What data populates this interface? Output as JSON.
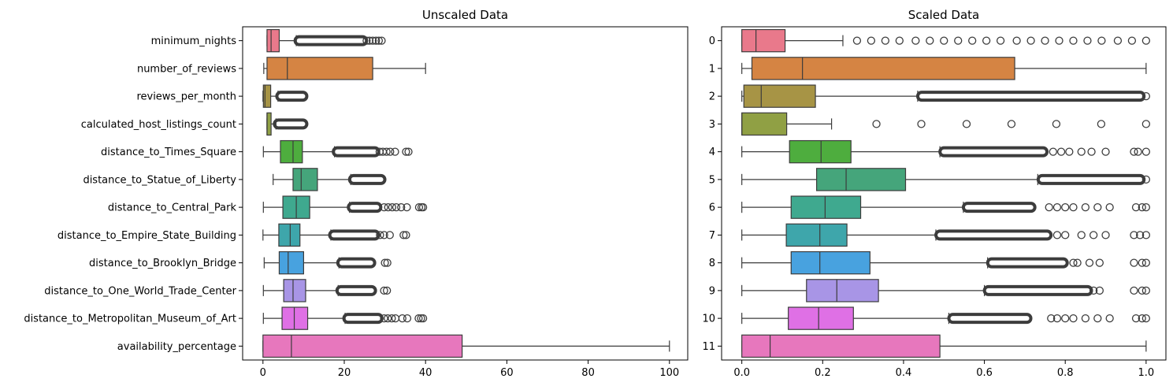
{
  "colors": {
    "box_palette": [
      "#e9798b",
      "#d58443",
      "#a79445",
      "#90a044",
      "#4ead3e",
      "#45a57b",
      "#3fa98f",
      "#3ea6ab",
      "#48a2df",
      "#a895e6",
      "#df70e5",
      "#e777bd"
    ],
    "box_edge": "#3c3c3c",
    "flier": "#3c3c3c",
    "frame": "#000000"
  },
  "chart_data": [
    {
      "type": "boxplot",
      "orientation": "horizontal",
      "title": "Unscaled Data",
      "xlim": [
        -5,
        104.5
      ],
      "xticks": [
        0,
        20,
        40,
        60,
        80,
        100
      ],
      "categories": [
        "minimum_nights",
        "number_of_reviews",
        "reviews_per_month",
        "calculated_host_listings_count",
        "distance_to_Times_Square",
        "distance_to_Statue_of_Liberty",
        "distance_to_Central_Park",
        "distance_to_Empire_State_Building",
        "distance_to_Brooklyn_Bridge",
        "distance_to_One_World_Trade_Center",
        "distance_to_Metropolitan_Museum_of_Art",
        "availability_percentage"
      ],
      "boxes": [
        {
          "wlo": 1,
          "q1": 1,
          "med": 2,
          "q3": 4,
          "whi": 8.2,
          "fliers": {
            "dense": [
              8.4,
              25
            ],
            "sparse": [
              25.5,
              26.2,
              27,
              27.8,
              28.5,
              29.2
            ]
          }
        },
        {
          "wlo": 0.2,
          "q1": 1,
          "med": 6,
          "q3": 27,
          "whi": 40,
          "fliers": {
            "dense": null,
            "sparse": []
          }
        },
        {
          "wlo": 0,
          "q1": 0.1,
          "med": 0.5,
          "q3": 1.9,
          "whi": 3.7,
          "fliers": {
            "dense": [
              3.9,
              10.3
            ],
            "sparse": []
          }
        },
        {
          "wlo": 1,
          "q1": 1,
          "med": 1,
          "q3": 2,
          "whi": 3.2,
          "fliers": {
            "dense": [
              3.3,
              10.3
            ],
            "sparse": []
          }
        },
        {
          "wlo": 0.1,
          "q1": 4.3,
          "med": 7.4,
          "q3": 9.7,
          "whi": 17.6,
          "fliers": {
            "dense": [
              17.8,
              28
            ],
            "sparse": [
              28.7,
              29.5,
              30.4,
              31.3,
              32.5,
              35.2,
              35.8
            ]
          }
        },
        {
          "wlo": 2.5,
          "q1": 7.4,
          "med": 9.4,
          "q3": 13.4,
          "whi": 21.6,
          "fliers": {
            "dense": [
              21.8,
              29.5
            ],
            "sparse": []
          }
        },
        {
          "wlo": 0.1,
          "q1": 4.9,
          "med": 8.2,
          "q3": 11.5,
          "whi": 21.3,
          "fliers": {
            "dense": [
              21.5,
              28.5
            ],
            "sparse": [
              29.8,
              30.8,
              31.8,
              32.8,
              34,
              35.4,
              38.4,
              39,
              39.4
            ]
          }
        },
        {
          "wlo": 0,
          "q1": 3.9,
          "med": 6.7,
          "q3": 9.1,
          "whi": 16.7,
          "fliers": {
            "dense": [
              16.9,
              28
            ],
            "sparse": [
              28.8,
              29.8,
              31.2,
              34.6,
              35.2
            ]
          }
        },
        {
          "wlo": 0.3,
          "q1": 4,
          "med": 6.2,
          "q3": 10,
          "whi": 18.7,
          "fliers": {
            "dense": [
              18.9,
              27
            ],
            "sparse": [
              30,
              30.6
            ]
          }
        },
        {
          "wlo": 0.1,
          "q1": 5.1,
          "med": 7.4,
          "q3": 10.5,
          "whi": 18.5,
          "fliers": {
            "dense": [
              18.7,
              27.2
            ],
            "sparse": [
              29.8,
              30.5
            ]
          }
        },
        {
          "wlo": 0.1,
          "q1": 4.7,
          "med": 7.7,
          "q3": 11,
          "whi": 20.2,
          "fliers": {
            "dense": [
              20.4,
              28.8
            ],
            "sparse": [
              29.8,
              30.7,
              31.7,
              32.6,
              34.3,
              35.5,
              38.3,
              38.9,
              39.4
            ]
          }
        },
        {
          "wlo": 0,
          "q1": 0,
          "med": 7,
          "q3": 49,
          "whi": 100,
          "fliers": {
            "dense": null,
            "sparse": []
          }
        }
      ]
    },
    {
      "type": "boxplot",
      "orientation": "horizontal",
      "title": "Scaled Data",
      "xlim": [
        -0.05,
        1.049
      ],
      "xticks": [
        0.0,
        0.2,
        0.4,
        0.6,
        0.8,
        1.0
      ],
      "categories": [
        "0",
        "1",
        "2",
        "3",
        "4",
        "5",
        "6",
        "7",
        "8",
        "9",
        "10",
        "11"
      ],
      "boxes": [
        {
          "wlo": 0,
          "q1": 0,
          "med": 0.035,
          "q3": 0.107,
          "whi": 0.25,
          "fliers": {
            "dense": null,
            "sparse": [
              0.285,
              0.32,
              0.355,
              0.39,
              0.43,
              0.465,
              0.5,
              0.535,
              0.57,
              0.605,
              0.64,
              0.68,
              0.715,
              0.75,
              0.785,
              0.82,
              0.855,
              0.89,
              0.93,
              0.965,
              1.0
            ]
          }
        },
        {
          "wlo": 0,
          "q1": 0.025,
          "med": 0.15,
          "q3": 0.675,
          "whi": 1.0,
          "fliers": {
            "dense": null,
            "sparse": []
          }
        },
        {
          "wlo": 0,
          "q1": 0.005,
          "med": 0.048,
          "q3": 0.182,
          "whi": 0.435,
          "fliers": {
            "dense": [
              0.44,
              0.99
            ],
            "sparse": [
              1.0
            ]
          }
        },
        {
          "wlo": 0,
          "q1": 0,
          "med": 0,
          "q3": 0.111,
          "whi": 0.222,
          "fliers": {
            "dense": null,
            "sparse": [
              0.333,
              0.444,
              0.556,
              0.667,
              0.778,
              0.889,
              1.0
            ]
          }
        },
        {
          "wlo": 0,
          "q1": 0.118,
          "med": 0.196,
          "q3": 0.27,
          "whi": 0.49,
          "fliers": {
            "dense": [
              0.495,
              0.75
            ],
            "sparse": [
              0.77,
              0.79,
              0.81,
              0.84,
              0.865,
              0.9,
              0.97,
              0.98,
              1.0
            ]
          }
        },
        {
          "wlo": 0,
          "q1": 0.185,
          "med": 0.258,
          "q3": 0.405,
          "whi": 0.732,
          "fliers": {
            "dense": [
              0.738,
              0.99
            ],
            "sparse": [
              1.0
            ]
          }
        },
        {
          "wlo": 0,
          "q1": 0.122,
          "med": 0.206,
          "q3": 0.294,
          "whi": 0.548,
          "fliers": {
            "dense": [
              0.553,
              0.72
            ],
            "sparse": [
              0.76,
              0.78,
              0.8,
              0.82,
              0.85,
              0.88,
              0.91,
              0.975,
              0.99,
              1.0
            ]
          }
        },
        {
          "wlo": 0,
          "q1": 0.11,
          "med": 0.193,
          "q3": 0.26,
          "whi": 0.48,
          "fliers": {
            "dense": [
              0.485,
              0.76
            ],
            "sparse": [
              0.78,
              0.8,
              0.84,
              0.87,
              0.9,
              0.97,
              0.985,
              1.0
            ]
          }
        },
        {
          "wlo": 0,
          "q1": 0.122,
          "med": 0.193,
          "q3": 0.317,
          "whi": 0.608,
          "fliers": {
            "dense": [
              0.613,
              0.8
            ],
            "sparse": [
              0.82,
              0.83,
              0.86,
              0.885,
              0.97,
              0.99,
              1.0
            ]
          }
        },
        {
          "wlo": 0,
          "q1": 0.16,
          "med": 0.235,
          "q3": 0.338,
          "whi": 0.6,
          "fliers": {
            "dense": [
              0.605,
              0.86
            ],
            "sparse": [
              0.87,
              0.885,
              0.97,
              0.99,
              1.0
            ]
          }
        },
        {
          "wlo": 0,
          "q1": 0.115,
          "med": 0.19,
          "q3": 0.276,
          "whi": 0.512,
          "fliers": {
            "dense": [
              0.517,
              0.71
            ],
            "sparse": [
              0.765,
              0.78,
              0.8,
              0.82,
              0.85,
              0.88,
              0.91,
              0.975,
              0.99,
              1.0
            ]
          }
        },
        {
          "wlo": 0,
          "q1": 0,
          "med": 0.07,
          "q3": 0.49,
          "whi": 1.0,
          "fliers": {
            "dense": null,
            "sparse": []
          }
        }
      ]
    }
  ]
}
